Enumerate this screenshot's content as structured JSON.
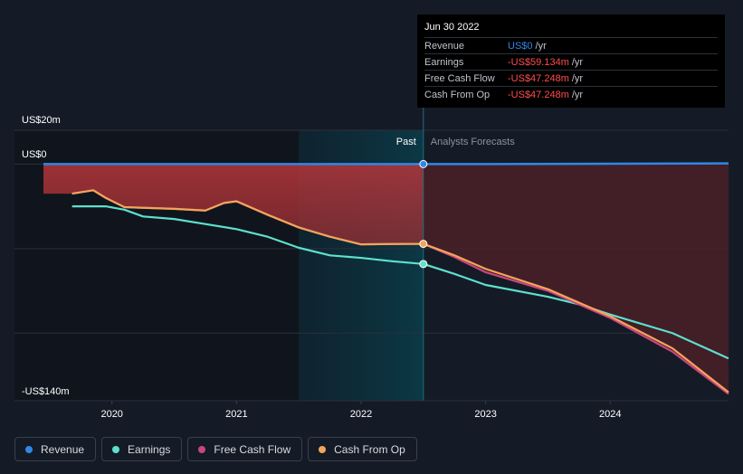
{
  "chart_data": {
    "type": "area",
    "y_label_top": "US$20m",
    "y_label_zero": "US$0",
    "y_label_bottom": "-US$140m",
    "ylim": [
      -140,
      20
    ],
    "xlim": [
      2019.45,
      2024.95
    ],
    "x_ticks": [
      {
        "value": 2020.0,
        "label": "2020"
      },
      {
        "value": 2021.0,
        "label": "2021"
      },
      {
        "value": 2022.0,
        "label": "2022"
      },
      {
        "value": 2023.0,
        "label": "2023"
      },
      {
        "value": 2024.0,
        "label": "2024"
      }
    ],
    "y_gridlines": [
      20,
      0,
      -50,
      -100,
      -140
    ],
    "past_label": "Past",
    "forecast_label": "Analysts Forecasts",
    "past_highlight_start": 2021.5,
    "divider_x": 2022.5,
    "series": [
      {
        "name": "Revenue",
        "color": "#2f88e6",
        "points": [
          [
            2019.45,
            0
          ],
          [
            2020.0,
            0
          ],
          [
            2021.0,
            0
          ],
          [
            2022.0,
            0
          ],
          [
            2022.5,
            0
          ],
          [
            2023.0,
            0
          ],
          [
            2024.0,
            0.2
          ],
          [
            2024.95,
            0.4
          ]
        ]
      },
      {
        "name": "Earnings",
        "color": "#5ee0cc",
        "points": [
          [
            2019.68,
            -25
          ],
          [
            2019.95,
            -25
          ],
          [
            2020.1,
            -27
          ],
          [
            2020.25,
            -31
          ],
          [
            2020.5,
            -32.5
          ],
          [
            2020.75,
            -35.5
          ],
          [
            2021.0,
            -38.5
          ],
          [
            2021.25,
            -43
          ],
          [
            2021.5,
            -49.5
          ],
          [
            2021.75,
            -54
          ],
          [
            2022.0,
            -55.5
          ],
          [
            2022.25,
            -57.5
          ],
          [
            2022.5,
            -59.1
          ],
          [
            2022.75,
            -65
          ],
          [
            2023.0,
            -71.5
          ],
          [
            2023.5,
            -78.5
          ],
          [
            2023.75,
            -83
          ],
          [
            2024.0,
            -89
          ],
          [
            2024.5,
            -100
          ],
          [
            2024.95,
            -115
          ]
        ]
      },
      {
        "name": "Free Cash Flow",
        "color": "#c8467e",
        "points": [
          [
            2019.68,
            -17.5
          ],
          [
            2019.85,
            -15.5
          ],
          [
            2019.95,
            -20
          ],
          [
            2020.1,
            -25.5
          ],
          [
            2020.5,
            -26.5
          ],
          [
            2020.75,
            -27.5
          ],
          [
            2020.9,
            -23
          ],
          [
            2021.0,
            -22
          ],
          [
            2021.25,
            -30
          ],
          [
            2021.5,
            -37.5
          ],
          [
            2021.75,
            -43
          ],
          [
            2022.0,
            -47.5
          ],
          [
            2022.25,
            -47.3
          ],
          [
            2022.5,
            -47.2
          ],
          [
            2022.75,
            -55
          ],
          [
            2023.0,
            -64
          ],
          [
            2023.5,
            -75
          ],
          [
            2023.75,
            -83
          ],
          [
            2024.0,
            -91
          ],
          [
            2024.5,
            -111
          ],
          [
            2024.95,
            -136
          ]
        ]
      },
      {
        "name": "Cash From Op",
        "color": "#f2a65a",
        "points": [
          [
            2019.68,
            -17.5
          ],
          [
            2019.85,
            -15.5
          ],
          [
            2019.95,
            -20
          ],
          [
            2020.1,
            -25.5
          ],
          [
            2020.5,
            -26.5
          ],
          [
            2020.75,
            -27.5
          ],
          [
            2020.9,
            -23
          ],
          [
            2021.0,
            -22
          ],
          [
            2021.25,
            -30
          ],
          [
            2021.5,
            -37.5
          ],
          [
            2021.75,
            -43
          ],
          [
            2022.0,
            -47.5
          ],
          [
            2022.25,
            -47.3
          ],
          [
            2022.5,
            -47.2
          ],
          [
            2022.75,
            -54
          ],
          [
            2023.0,
            -62
          ],
          [
            2023.5,
            -74
          ],
          [
            2023.75,
            -82
          ],
          [
            2024.0,
            -90
          ],
          [
            2024.5,
            -109
          ],
          [
            2024.95,
            -135
          ]
        ]
      }
    ],
    "shaded_area": {
      "series": "Free Cash Flow",
      "base": 0,
      "color": "#c0393b"
    }
  },
  "tooltip": {
    "date": "Jun 30 2022",
    "rows": [
      {
        "label": "Revenue",
        "value": "US$0",
        "unit": "/yr",
        "color": "#2f88e6"
      },
      {
        "label": "Earnings",
        "value": "-US$59.134m",
        "unit": "/yr",
        "color": "#ff4d4f"
      },
      {
        "label": "Free Cash Flow",
        "value": "-US$47.248m",
        "unit": "/yr",
        "color": "#ff4d4f"
      },
      {
        "label": "Cash From Op",
        "value": "-US$47.248m",
        "unit": "/yr",
        "color": "#ff4d4f"
      }
    ]
  },
  "legend": [
    {
      "label": "Revenue",
      "color": "#2f88e6"
    },
    {
      "label": "Earnings",
      "color": "#5ee0cc"
    },
    {
      "label": "Free Cash Flow",
      "color": "#c8467e"
    },
    {
      "label": "Cash From Op",
      "color": "#f2a65a"
    }
  ]
}
